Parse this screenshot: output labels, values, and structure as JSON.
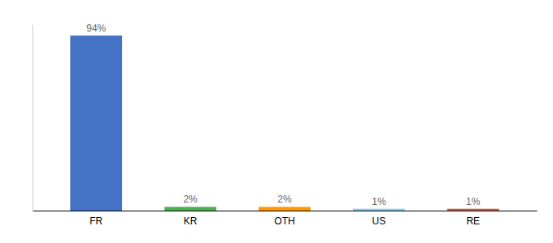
{
  "chart_data": {
    "type": "bar",
    "categories": [
      "FR",
      "KR",
      "OTH",
      "US",
      "RE"
    ],
    "values": [
      94,
      2,
      2,
      1,
      1
    ],
    "value_labels": [
      "94%",
      "2%",
      "2%",
      "1%",
      "1%"
    ],
    "colors": [
      "#4472c4",
      "#4caf50",
      "#ff9800",
      "#87ceeb",
      "#c0604a"
    ],
    "ylim": [
      0,
      100
    ],
    "data_labels": true,
    "tick_labels": "x",
    "grid": false
  }
}
